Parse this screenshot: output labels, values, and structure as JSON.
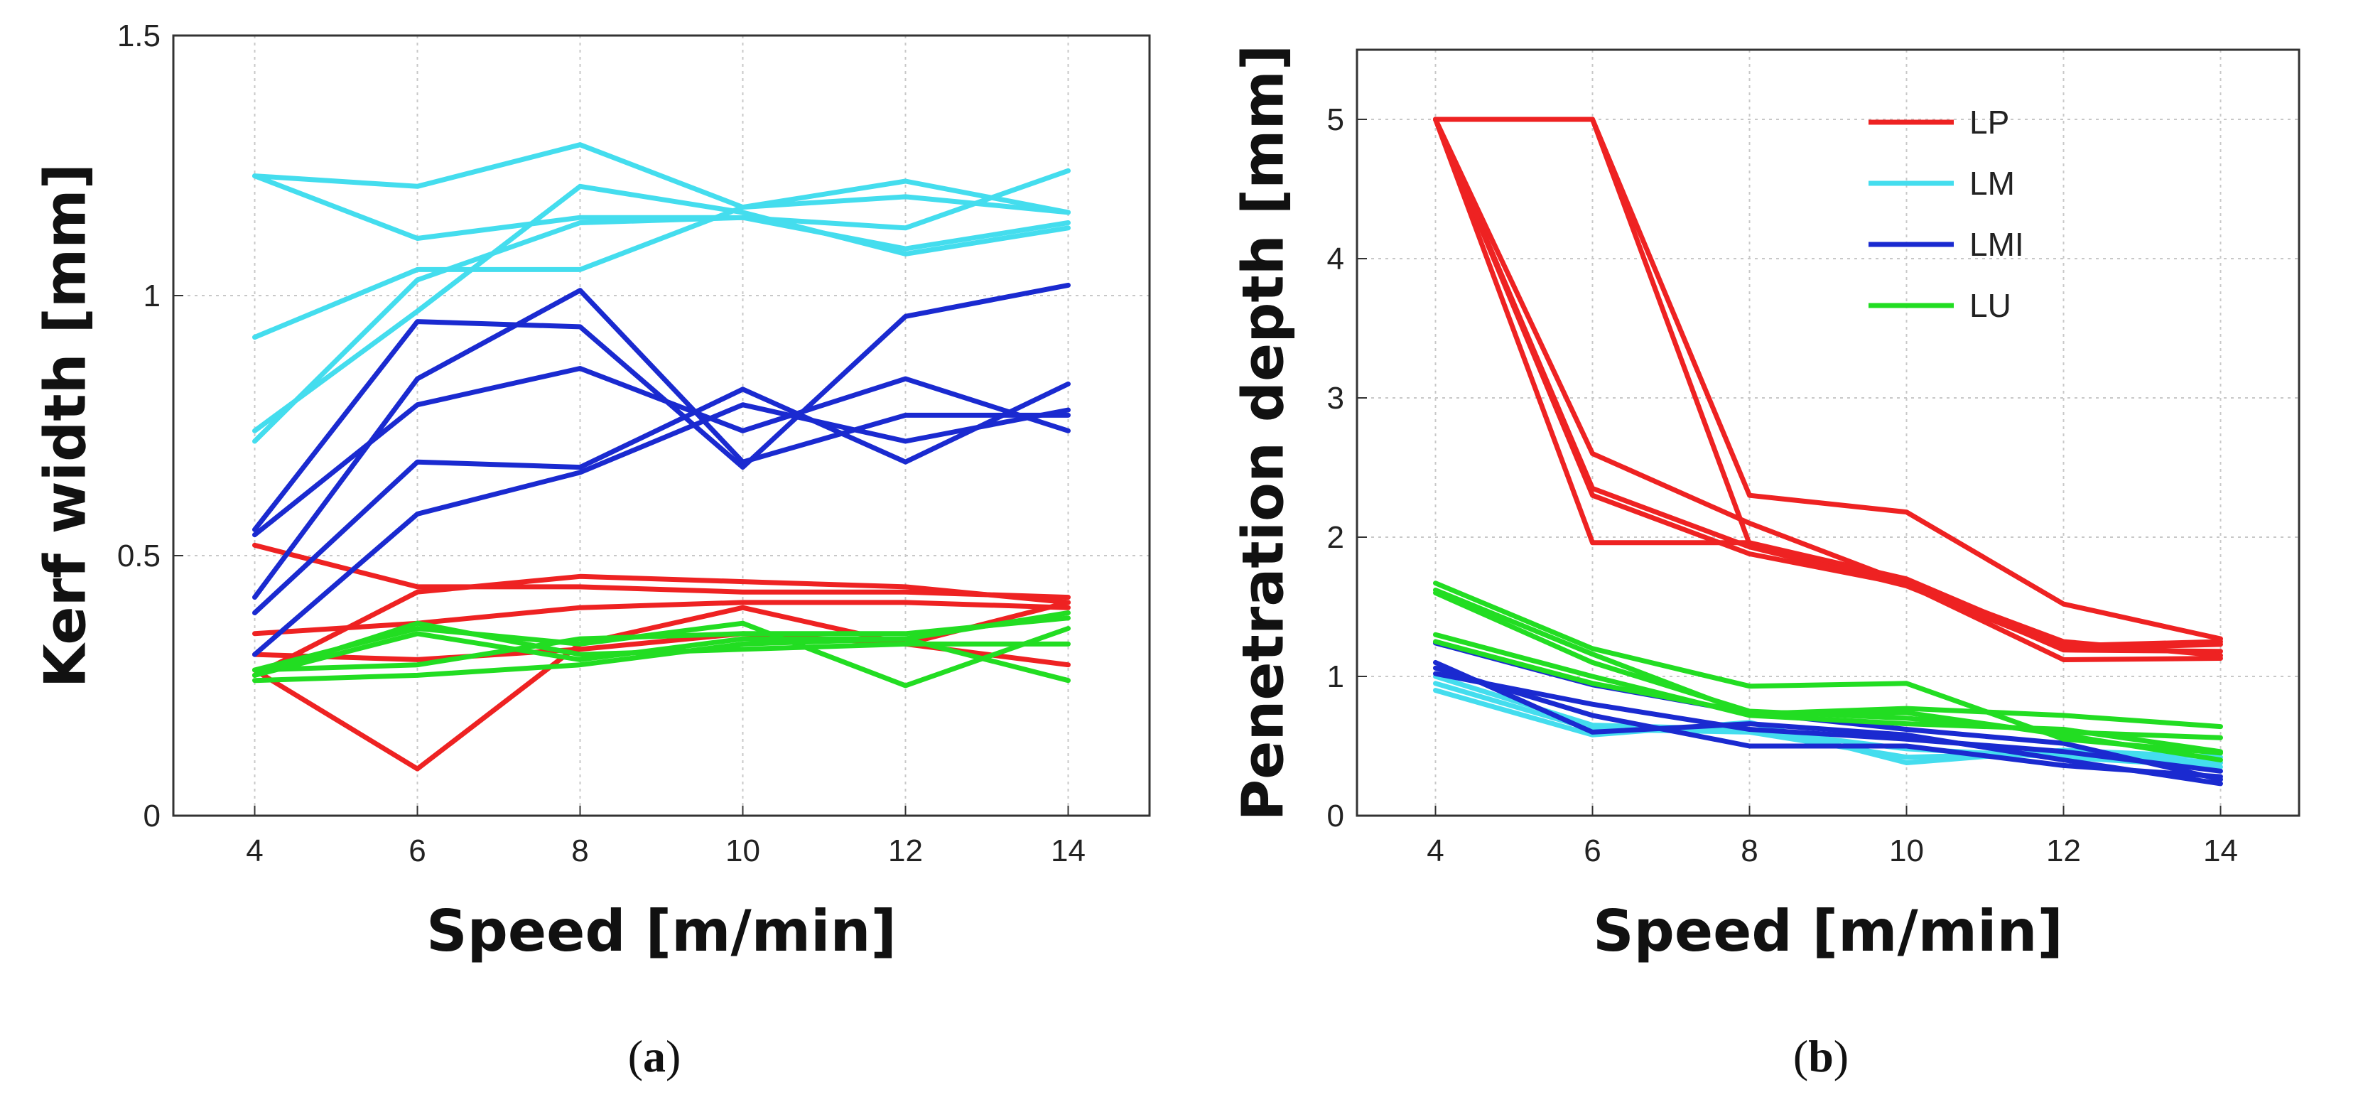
{
  "chart_data": [
    {
      "type": "line",
      "panel_label": "a",
      "xlabel": "Speed [m/min]",
      "ylabel": "Kerf width [mm]",
      "xlim": [
        3,
        15
      ],
      "ylim": [
        0,
        1.5
      ],
      "xticks": [
        "4",
        "6",
        "8",
        "10",
        "12",
        "14"
      ],
      "yticks": [
        "0",
        "0.5",
        "1",
        "1.5"
      ],
      "grid": true,
      "x": [
        4,
        6,
        8,
        10,
        12,
        14
      ],
      "groups": [
        {
          "name": "LP",
          "color": "#ee2222",
          "lines": [
            [
              0.52,
              0.44,
              0.44,
              0.43,
              0.43,
              0.42
            ],
            [
              0.35,
              0.37,
              0.4,
              0.41,
              0.41,
              0.4
            ],
            [
              0.31,
              0.3,
              0.32,
              0.35,
              0.33,
              0.29
            ],
            [
              0.28,
              0.09,
              0.33,
              0.4,
              0.33,
              0.41
            ],
            [
              0.27,
              0.43,
              0.46,
              0.45,
              0.44,
              0.41
            ]
          ]
        },
        {
          "name": "LM",
          "color": "#44ddee",
          "lines": [
            [
              1.23,
              1.21,
              1.29,
              1.17,
              1.22,
              1.16
            ],
            [
              1.23,
              1.11,
              1.15,
              1.15,
              1.13,
              1.24
            ],
            [
              0.92,
              1.05,
              1.05,
              1.17,
              1.19,
              1.16
            ],
            [
              0.74,
              0.97,
              1.21,
              1.16,
              1.08,
              1.13
            ],
            [
              0.72,
              1.03,
              1.14,
              1.15,
              1.09,
              1.14
            ]
          ]
        },
        {
          "name": "LMI",
          "color": "#1a2ad0",
          "lines": [
            [
              0.55,
              0.95,
              0.94,
              0.67,
              0.96,
              1.02
            ],
            [
              0.54,
              0.79,
              0.86,
              0.74,
              0.84,
              0.74
            ],
            [
              0.42,
              0.84,
              1.01,
              0.68,
              0.77,
              0.77
            ],
            [
              0.39,
              0.68,
              0.67,
              0.82,
              0.68,
              0.83
            ],
            [
              0.31,
              0.58,
              0.66,
              0.79,
              0.72,
              0.78
            ]
          ]
        },
        {
          "name": "LU",
          "color": "#22dd22",
          "lines": [
            [
              0.28,
              0.36,
              0.33,
              0.37,
              0.25,
              0.36
            ],
            [
              0.27,
              0.35,
              0.3,
              0.34,
              0.34,
              0.26
            ],
            [
              0.26,
              0.27,
              0.29,
              0.33,
              0.34,
              0.39
            ],
            [
              0.28,
              0.29,
              0.34,
              0.35,
              0.35,
              0.38
            ],
            [
              0.27,
              0.37,
              0.31,
              0.32,
              0.33,
              0.33
            ]
          ]
        }
      ]
    },
    {
      "type": "line",
      "panel_label": "b",
      "xlabel": "Speed [m/min]",
      "ylabel": "Penetration depth [mm]",
      "xlim": [
        3,
        15
      ],
      "ylim": [
        0,
        5.5
      ],
      "xticks": [
        "4",
        "6",
        "8",
        "10",
        "12",
        "14"
      ],
      "yticks": [
        "0",
        "1",
        "2",
        "3",
        "4",
        "5"
      ],
      "grid": true,
      "legend": {
        "position": "top-right",
        "entries": [
          "LP",
          "LM",
          "LMI",
          "LU"
        ]
      },
      "x": [
        4,
        6,
        8,
        10,
        12,
        14
      ],
      "groups": [
        {
          "name": "LP",
          "color": "#ee2222",
          "lines": [
            [
              5.0,
              5.0,
              2.3,
              2.18,
              1.52,
              1.27
            ],
            [
              5.0,
              5.0,
              1.95,
              1.68,
              1.19,
              1.18
            ],
            [
              5.0,
              2.6,
              2.1,
              1.67,
              1.25,
              1.15
            ],
            [
              5.0,
              2.35,
              1.93,
              1.65,
              1.2,
              1.23
            ],
            [
              5.0,
              2.3,
              1.88,
              1.66,
              1.12,
              1.13
            ],
            [
              5.0,
              1.96,
              1.96,
              1.7,
              1.22,
              1.25
            ]
          ]
        },
        {
          "name": "LM",
          "color": "#44ddee",
          "lines": [
            [
              0.9,
              0.58,
              0.67,
              0.38,
              0.47,
              0.42
            ],
            [
              0.95,
              0.62,
              0.6,
              0.42,
              0.45,
              0.38
            ],
            [
              1.0,
              0.65,
              0.62,
              0.48,
              0.42,
              0.35
            ]
          ]
        },
        {
          "name": "LMI",
          "color": "#1a2ad0",
          "lines": [
            [
              1.24,
              0.94,
              0.74,
              0.62,
              0.52,
              0.26
            ],
            [
              1.1,
              0.6,
              0.66,
              0.58,
              0.4,
              0.23
            ],
            [
              1.06,
              0.72,
              0.5,
              0.5,
              0.36,
              0.28
            ],
            [
              1.02,
              0.8,
              0.62,
              0.55,
              0.46,
              0.32
            ]
          ]
        },
        {
          "name": "LU",
          "color": "#22dd22",
          "lines": [
            [
              1.67,
              1.2,
              0.93,
              0.95,
              0.55,
              0.45
            ],
            [
              1.62,
              1.16,
              0.73,
              0.77,
              0.72,
              0.64
            ],
            [
              1.6,
              1.1,
              0.75,
              0.7,
              0.6,
              0.56
            ],
            [
              1.3,
              1.0,
              0.72,
              0.66,
              0.62,
              0.46
            ],
            [
              1.25,
              0.95,
              0.74,
              0.74,
              0.58,
              0.4
            ]
          ]
        }
      ]
    }
  ]
}
